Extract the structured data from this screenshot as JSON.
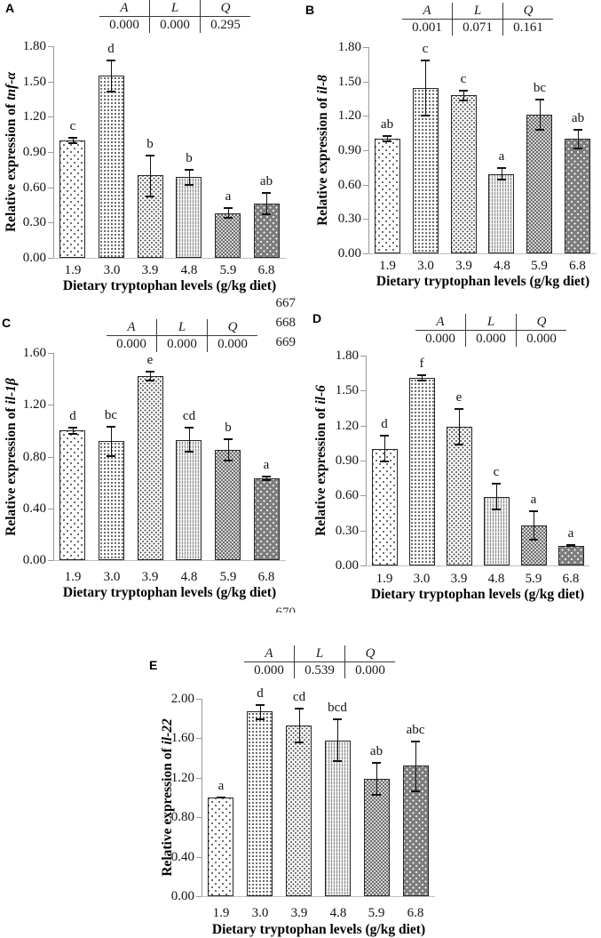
{
  "figure": {
    "line_numbers": [
      "667",
      "668",
      "669"
    ],
    "cropped_line_number": "670",
    "background_color": "#ffffff",
    "text_color": "#111111",
    "axis_color": "#9a9a9a",
    "baseline_color": "#bfbfbf"
  },
  "stats_header": [
    "A",
    "L",
    "Q"
  ],
  "chart_data": [
    {
      "id": "A",
      "panel_label": "A",
      "type": "bar",
      "ylabel_prefix": "Relative expression of",
      "gene": "tnf-α",
      "xlabel": "Dietary tryptophan levels (g/kg diet)",
      "categories": [
        "1.9",
        "3.0",
        "3.9",
        "4.8",
        "5.9",
        "6.8"
      ],
      "values": [
        1.0,
        1.55,
        0.7,
        0.69,
        0.38,
        0.46
      ],
      "errors": [
        0.03,
        0.14,
        0.18,
        0.07,
        0.05,
        0.1
      ],
      "sig_letters": [
        "c",
        "d",
        "b",
        "b",
        "a",
        "ab"
      ],
      "stats_values": [
        "0.000",
        "0.000",
        "0.295"
      ],
      "ylim": [
        0,
        1.8
      ],
      "yticks": [
        "0.00",
        "0.30",
        "0.60",
        "0.90",
        "1.20",
        "1.50",
        "1.80"
      ],
      "legend": "none",
      "grid": false
    },
    {
      "id": "B",
      "panel_label": "B",
      "type": "bar",
      "ylabel_prefix": "Relative expression of",
      "gene": "il-8",
      "xlabel": "Dietary tryptophan levels (g/kg diet)",
      "categories": [
        "1.9",
        "3.0",
        "3.9",
        "4.8",
        "5.9",
        "6.8"
      ],
      "values": [
        1.0,
        1.44,
        1.38,
        0.69,
        1.21,
        1.0
      ],
      "errors": [
        0.03,
        0.25,
        0.05,
        0.06,
        0.14,
        0.09
      ],
      "sig_letters": [
        "ab",
        "c",
        "c",
        "a",
        "bc",
        "ab"
      ],
      "stats_values": [
        "0.001",
        "0.071",
        "0.161"
      ],
      "ylim": [
        0,
        1.8
      ],
      "yticks": [
        "0.00",
        "0.30",
        "0.60",
        "0.90",
        "1.20",
        "1.50",
        "1.80"
      ],
      "legend": "none",
      "grid": false
    },
    {
      "id": "C",
      "panel_label": "C",
      "type": "bar",
      "ylabel_prefix": "Relative expression of",
      "gene": "il-1β",
      "xlabel": "Dietary tryptophan levels (g/kg diet)",
      "categories": [
        "1.9",
        "3.0",
        "3.9",
        "4.8",
        "5.9",
        "6.8"
      ],
      "values": [
        1.0,
        0.92,
        1.42,
        0.93,
        0.85,
        0.63
      ],
      "errors": [
        0.03,
        0.12,
        0.04,
        0.1,
        0.09,
        0.02
      ],
      "sig_letters": [
        "d",
        "bc",
        "e",
        "cd",
        "b",
        "a"
      ],
      "stats_values": [
        "0.000",
        "0.000",
        "0.000"
      ],
      "ylim": [
        0,
        1.6
      ],
      "yticks": [
        "0.00",
        "0.40",
        "0.80",
        "1.20",
        "1.60"
      ],
      "legend": "none",
      "grid": false
    },
    {
      "id": "D",
      "panel_label": "D",
      "type": "bar",
      "ylabel_prefix": "Relative expression of",
      "gene": "il-6",
      "xlabel": "Dietary tryptophan levels (g/kg diet)",
      "categories": [
        "1.9",
        "3.0",
        "3.9",
        "4.8",
        "5.9",
        "6.8"
      ],
      "values": [
        1.0,
        1.61,
        1.19,
        0.59,
        0.34,
        0.17
      ],
      "errors": [
        0.12,
        0.03,
        0.16,
        0.12,
        0.13,
        0.01
      ],
      "sig_letters": [
        "d",
        "f",
        "e",
        "c",
        "a",
        "a"
      ],
      "stats_values": [
        "0.000",
        "0.000",
        "0.000"
      ],
      "ylim": [
        0,
        1.8
      ],
      "yticks": [
        "0.00",
        "0.30",
        "0.60",
        "0.90",
        "1.20",
        "1.50",
        "1.80"
      ],
      "legend": "none",
      "grid": false
    },
    {
      "id": "E",
      "panel_label": "E",
      "type": "bar",
      "ylabel_prefix": "Relative expression of",
      "gene": "il-22",
      "xlabel": "Dietary tryptophan levels (g/kg diet)",
      "categories": [
        "1.9",
        "3.0",
        "3.9",
        "4.8",
        "5.9",
        "6.8"
      ],
      "values": [
        1.0,
        1.87,
        1.73,
        1.58,
        1.19,
        1.32
      ],
      "errors": [
        0.01,
        0.08,
        0.18,
        0.22,
        0.17,
        0.26
      ],
      "sig_letters": [
        "a",
        "d",
        "cd",
        "bcd",
        "ab",
        "abc"
      ],
      "stats_values": [
        "0.000",
        "0.539",
        "0.000"
      ],
      "ylim": [
        0,
        2.0
      ],
      "yticks": [
        "0.00",
        "0.40",
        "0.80",
        "1.20",
        "1.60",
        "2.00"
      ],
      "legend": "none",
      "grid": false
    }
  ]
}
